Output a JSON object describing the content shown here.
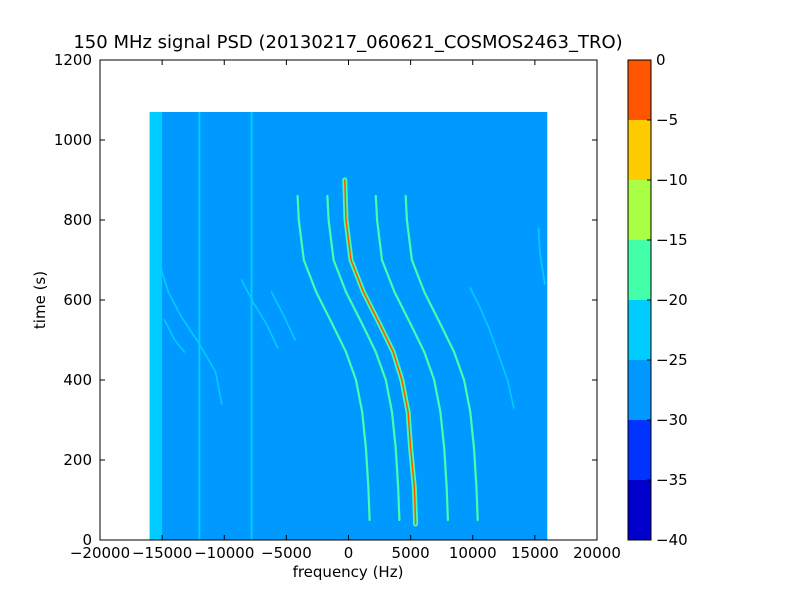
{
  "chart_data": {
    "type": "heatmap",
    "title": "150 MHz signal PSD (20130217_060621_COSMOS2463_TRO)",
    "xlabel": "frequency (Hz)",
    "ylabel": "time (s)",
    "xlim": [
      -20000,
      20000
    ],
    "ylim": [
      0,
      1200
    ],
    "x_ticks": [
      -20000,
      -15000,
      -10000,
      -5000,
      0,
      5000,
      10000,
      15000,
      20000
    ],
    "x_tick_labels": [
      "−20000",
      "−15000",
      "−10000",
      "−5000",
      "0",
      "5000",
      "10000",
      "15000",
      "20000"
    ],
    "y_ticks": [
      0,
      200,
      400,
      600,
      800,
      1000,
      1200
    ],
    "y_tick_labels": [
      "0",
      "200",
      "400",
      "600",
      "800",
      "1000",
      "1200"
    ],
    "data_extent": {
      "x": [
        -16000,
        16000
      ],
      "y": [
        0,
        1070
      ]
    },
    "background_level": -27.5,
    "band_edge": {
      "x_range": [
        -16000,
        -15000
      ],
      "level": -22.5
    },
    "colorbar": {
      "levels": [
        -40,
        -35,
        -30,
        -25,
        -20,
        -15,
        -10,
        -5,
        0
      ],
      "tick_labels": [
        "−40",
        "−35",
        "−30",
        "−25",
        "−20",
        "−15",
        "−10",
        "−5",
        "0"
      ],
      "colors": [
        "#0000cc",
        "#0033ff",
        "#0099ff",
        "#00ccff",
        "#44ffaa",
        "#aaff44",
        "#ffcc00",
        "#ff5500",
        "#cc0000"
      ]
    },
    "vertical_lines": [
      {
        "x": -12000,
        "level": -22.5
      },
      {
        "x": -7800,
        "level": -22.5
      }
    ],
    "traces": [
      {
        "name_hidden": "main",
        "level": -7.5,
        "points": [
          [
            -300,
            900
          ],
          [
            -200,
            800
          ],
          [
            200,
            700
          ],
          [
            1200,
            620
          ],
          [
            2500,
            540
          ],
          [
            3600,
            470
          ],
          [
            4300,
            400
          ],
          [
            4800,
            320
          ],
          [
            5000,
            230
          ],
          [
            5300,
            130
          ],
          [
            5400,
            40
          ]
        ]
      },
      {
        "level": -17.5,
        "points": [
          [
            2200,
            860
          ],
          [
            2300,
            800
          ],
          [
            2700,
            700
          ],
          [
            3700,
            620
          ],
          [
            5000,
            540
          ],
          [
            6100,
            470
          ],
          [
            6900,
            400
          ],
          [
            7400,
            320
          ],
          [
            7700,
            230
          ],
          [
            7900,
            130
          ],
          [
            8000,
            50
          ]
        ]
      },
      {
        "level": -17.5,
        "points": [
          [
            4600,
            860
          ],
          [
            4700,
            800
          ],
          [
            5100,
            700
          ],
          [
            6100,
            620
          ],
          [
            7400,
            540
          ],
          [
            8500,
            470
          ],
          [
            9300,
            400
          ],
          [
            9800,
            320
          ],
          [
            10100,
            230
          ],
          [
            10300,
            130
          ],
          [
            10400,
            50
          ]
        ]
      },
      {
        "level": -17.5,
        "points": [
          [
            -1700,
            860
          ],
          [
            -1600,
            800
          ],
          [
            -1200,
            700
          ],
          [
            -200,
            620
          ],
          [
            1100,
            540
          ],
          [
            2200,
            470
          ],
          [
            3000,
            400
          ],
          [
            3500,
            320
          ],
          [
            3800,
            230
          ],
          [
            4000,
            130
          ],
          [
            4100,
            50
          ]
        ]
      },
      {
        "level": -17.5,
        "points": [
          [
            -4100,
            860
          ],
          [
            -4000,
            800
          ],
          [
            -3600,
            700
          ],
          [
            -2600,
            620
          ],
          [
            -1300,
            540
          ],
          [
            -200,
            470
          ],
          [
            600,
            400
          ],
          [
            1100,
            320
          ],
          [
            1400,
            230
          ],
          [
            1600,
            130
          ],
          [
            1700,
            50
          ]
        ]
      },
      {
        "level": -22.5,
        "points": [
          [
            -15200,
            690
          ],
          [
            -14500,
            620
          ],
          [
            -13500,
            560
          ],
          [
            -12000,
            490
          ],
          [
            -10700,
            420
          ],
          [
            -10200,
            340
          ]
        ]
      },
      {
        "level": -22.5,
        "points": [
          [
            -14800,
            550
          ],
          [
            -14000,
            500
          ],
          [
            -13200,
            470
          ]
        ]
      },
      {
        "level": -22.5,
        "points": [
          [
            -8600,
            650
          ],
          [
            -7600,
            590
          ],
          [
            -6600,
            540
          ],
          [
            -5700,
            480
          ]
        ]
      },
      {
        "level": -22.5,
        "points": [
          [
            -6200,
            620
          ],
          [
            -5200,
            560
          ],
          [
            -4300,
            500
          ]
        ]
      },
      {
        "level": -22.5,
        "points": [
          [
            9800,
            630
          ],
          [
            10600,
            580
          ],
          [
            11300,
            530
          ],
          [
            12000,
            470
          ],
          [
            12800,
            400
          ],
          [
            13300,
            330
          ]
        ]
      },
      {
        "level": -22.5,
        "points": [
          [
            15300,
            780
          ],
          [
            15400,
            720
          ],
          [
            15800,
            640
          ]
        ]
      },
      {
        "level": -22.5,
        "points": [
          [
            -15300,
            650
          ],
          [
            -15600,
            690
          ]
        ]
      }
    ]
  }
}
